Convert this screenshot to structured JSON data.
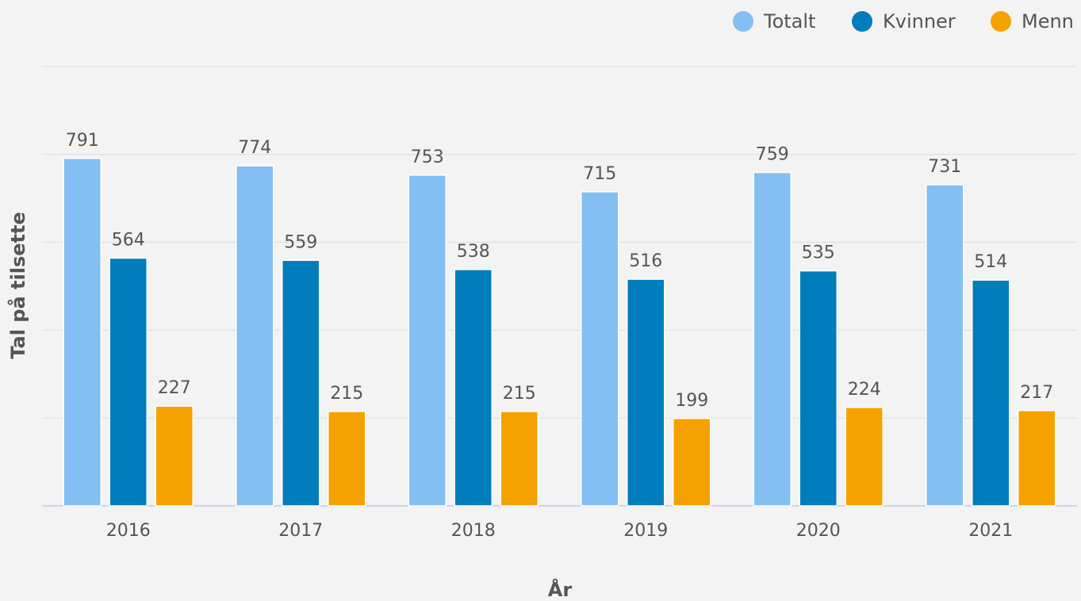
{
  "chart_data": {
    "type": "bar",
    "x_label": "År",
    "y_label": "Tal på tilsette",
    "categories": [
      "2016",
      "2017",
      "2018",
      "2019",
      "2020",
      "2021"
    ],
    "series": [
      {
        "name": "Totalt",
        "color": "#83bff2",
        "values": [
          791,
          774,
          753,
          715,
          759,
          731
        ]
      },
      {
        "name": "Kvinner",
        "color": "#007dba",
        "values": [
          564,
          559,
          538,
          516,
          535,
          514
        ]
      },
      {
        "name": "Menn",
        "color": "#f5a200",
        "values": [
          227,
          215,
          215,
          199,
          224,
          217
        ]
      }
    ],
    "ylim": [
      0,
      1000
    ],
    "yticks": [
      0,
      200,
      400,
      600,
      800,
      1000
    ],
    "grid": true,
    "legend": "top-right"
  }
}
